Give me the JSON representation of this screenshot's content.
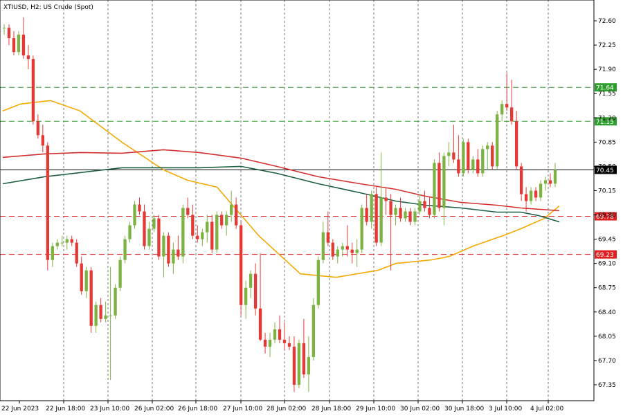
{
  "header": {
    "title": "XTIUSD, H2:  US Crude (Spot)"
  },
  "chart_data": {
    "type": "candlestick",
    "symbol": "XTIUSD",
    "timeframe": "H2",
    "instrument": "US Crude (Spot)",
    "ylim": [
      67.12,
      72.9
    ],
    "y_ticks": [
      72.6,
      72.25,
      71.9,
      71.55,
      71.2,
      70.85,
      70.5,
      70.15,
      69.8,
      69.45,
      69.1,
      68.75,
      68.4,
      68.05,
      67.7,
      67.35
    ],
    "y_tick_labels": [
      "72.60",
      "72.25",
      "71.90",
      "71.55",
      "71.20",
      "70.85",
      "70.50",
      "70.15",
      "69.80",
      "69.45",
      "69.10",
      "68.75",
      "68.40",
      "68.05",
      "67.70",
      "67.35"
    ],
    "x_labels": [
      "22 Jun 2023",
      "22 Jun 18:00",
      "23 Jun 10:00",
      "26 Jun 02:00",
      "26 Jun 18:00",
      "27 Jun 10:00",
      "28 Jun 02:00",
      "28 Jun 18:00",
      "29 Jun 10:00",
      "30 Jun 02:00",
      "30 Jun 18:00",
      "3 Jul 10:00",
      "4 Jul 02:00"
    ],
    "grid": "vertical-dashed",
    "current_price": {
      "value": 70.45,
      "label": "70.45",
      "color": "#000000"
    },
    "levels": [
      {
        "value": 71.64,
        "label": "71.64",
        "color": "#2e9e2e",
        "style": "dashed"
      },
      {
        "value": 71.15,
        "label": "71.15",
        "color": "#2e9e2e",
        "style": "dashed"
      },
      {
        "value": 69.78,
        "label": "69.78",
        "color": "#e02020",
        "style": "dashed"
      },
      {
        "value": 69.23,
        "label": "69.23",
        "color": "#e02020",
        "style": "dashed"
      }
    ],
    "candle_colors": {
      "up": "#7cb342",
      "down": "#e53935"
    },
    "candles": [
      [
        72.5,
        72.55,
        72.4,
        72.5
      ],
      [
        72.5,
        72.55,
        72.25,
        72.35
      ],
      [
        72.35,
        72.45,
        72.1,
        72.15
      ],
      [
        72.15,
        72.45,
        72.1,
        72.4
      ],
      [
        72.4,
        72.65,
        72.05,
        72.1
      ],
      [
        72.1,
        72.25,
        71.9,
        72.05
      ],
      [
        72.05,
        72.1,
        71.1,
        71.15
      ],
      [
        71.15,
        71.25,
        70.9,
        70.95
      ],
      [
        70.95,
        71.1,
        70.7,
        70.8
      ],
      [
        70.8,
        70.85,
        69.0,
        69.15
      ],
      [
        69.15,
        69.4,
        69.05,
        69.35
      ],
      [
        69.35,
        69.45,
        69.3,
        69.4
      ],
      [
        69.4,
        69.5,
        69.35,
        69.4
      ],
      [
        69.4,
        69.5,
        69.3,
        69.45
      ],
      [
        69.45,
        69.5,
        69.35,
        69.4
      ],
      [
        69.4,
        69.45,
        69.05,
        69.1
      ],
      [
        69.1,
        69.2,
        68.65,
        68.7
      ],
      [
        68.7,
        69.05,
        68.6,
        69.0
      ],
      [
        69.0,
        69.05,
        68.1,
        68.2
      ],
      [
        68.2,
        68.55,
        68.1,
        68.5
      ],
      [
        68.5,
        68.6,
        68.25,
        68.3
      ],
      [
        68.3,
        68.55,
        68.25,
        68.35
      ],
      [
        68.35,
        69.05,
        67.42,
        68.35
      ],
      [
        68.35,
        68.8,
        68.3,
        68.75
      ],
      [
        68.75,
        69.2,
        68.7,
        69.15
      ],
      [
        69.15,
        69.5,
        69.1,
        69.45
      ],
      [
        69.45,
        69.7,
        69.4,
        69.65
      ],
      [
        69.65,
        70.0,
        69.6,
        69.95
      ],
      [
        69.95,
        70.05,
        69.8,
        69.85
      ],
      [
        69.85,
        69.95,
        69.3,
        69.35
      ],
      [
        69.35,
        69.7,
        69.3,
        69.6
      ],
      [
        69.6,
        69.8,
        69.55,
        69.75
      ],
      [
        69.75,
        69.8,
        69.15,
        69.2
      ],
      [
        69.2,
        69.55,
        68.9,
        69.5
      ],
      [
        69.5,
        69.55,
        69.05,
        69.1
      ],
      [
        69.1,
        69.4,
        68.95,
        69.3
      ],
      [
        69.3,
        69.5,
        69.15,
        69.2
      ],
      [
        69.2,
        69.95,
        69.1,
        69.9
      ],
      [
        69.9,
        70.05,
        69.75,
        69.8
      ],
      [
        69.8,
        69.95,
        69.45,
        69.5
      ],
      [
        69.5,
        69.65,
        69.4,
        69.45
      ],
      [
        69.45,
        69.6,
        69.35,
        69.55
      ],
      [
        69.55,
        69.8,
        69.4,
        69.7
      ],
      [
        69.7,
        69.8,
        69.25,
        69.3
      ],
      [
        69.3,
        69.85,
        69.25,
        69.8
      ],
      [
        69.8,
        69.85,
        69.6,
        69.65
      ],
      [
        69.65,
        69.85,
        69.5,
        69.8
      ],
      [
        69.8,
        70.15,
        69.7,
        69.95
      ],
      [
        69.95,
        70.05,
        69.6,
        69.65
      ],
      [
        69.65,
        69.7,
        68.35,
        68.5
      ],
      [
        68.5,
        68.85,
        68.3,
        68.75
      ],
      [
        68.75,
        69.0,
        68.6,
        68.95
      ],
      [
        68.95,
        69.1,
        68.35,
        68.45
      ],
      [
        68.45,
        69.25,
        67.98,
        68.0
      ],
      [
        68.0,
        68.1,
        67.8,
        67.9
      ],
      [
        67.9,
        68.1,
        67.75,
        68.0
      ],
      [
        68.0,
        68.25,
        67.95,
        68.15
      ],
      [
        68.15,
        68.35,
        67.95,
        68.0
      ],
      [
        68.0,
        68.25,
        67.85,
        67.95
      ],
      [
        67.95,
        68.05,
        67.85,
        67.9
      ],
      [
        67.9,
        68.05,
        67.25,
        67.35
      ],
      [
        67.35,
        68.0,
        67.3,
        67.95
      ],
      [
        67.95,
        68.3,
        67.45,
        67.5
      ],
      [
        67.5,
        68.05,
        67.25,
        67.75
      ],
      [
        67.75,
        68.6,
        67.7,
        68.5
      ],
      [
        68.5,
        69.2,
        68.45,
        69.15
      ],
      [
        69.15,
        69.7,
        69.1,
        69.55
      ],
      [
        69.55,
        69.85,
        69.35,
        69.4
      ],
      [
        69.4,
        69.45,
        69.15,
        69.2
      ],
      [
        69.2,
        69.35,
        69.1,
        69.3
      ],
      [
        69.3,
        69.4,
        69.2,
        69.35
      ],
      [
        69.35,
        69.65,
        69.2,
        69.3
      ],
      [
        69.3,
        69.4,
        69.1,
        69.25
      ],
      [
        69.25,
        69.45,
        69.05,
        69.3
      ],
      [
        69.3,
        69.95,
        69.25,
        69.9
      ],
      [
        69.9,
        70.1,
        69.65,
        69.7
      ],
      [
        69.7,
        70.15,
        69.6,
        70.1
      ],
      [
        70.1,
        70.2,
        69.35,
        69.4
      ],
      [
        69.4,
        70.7,
        69.35,
        70.05
      ],
      [
        70.05,
        70.2,
        69.8,
        70.0
      ],
      [
        70.0,
        70.1,
        69.0,
        69.8
      ],
      [
        69.8,
        69.95,
        69.65,
        69.9
      ],
      [
        69.9,
        70.05,
        69.7,
        69.75
      ],
      [
        69.75,
        69.9,
        69.7,
        69.85
      ],
      [
        69.85,
        69.9,
        69.65,
        69.7
      ],
      [
        69.7,
        69.9,
        69.65,
        69.85
      ],
      [
        69.85,
        70.1,
        69.8,
        70.0
      ],
      [
        70.0,
        70.15,
        69.85,
        69.9
      ],
      [
        69.9,
        70.05,
        69.75,
        69.8
      ],
      [
        69.8,
        70.6,
        69.75,
        70.55
      ],
      [
        70.55,
        70.7,
        69.85,
        69.9
      ],
      [
        69.9,
        70.7,
        69.65,
        70.65
      ],
      [
        70.65,
        70.85,
        70.5,
        70.7
      ],
      [
        70.7,
        71.1,
        70.55,
        70.6
      ],
      [
        70.6,
        70.95,
        70.35,
        70.4
      ],
      [
        70.4,
        70.9,
        70.35,
        70.85
      ],
      [
        70.85,
        70.9,
        70.4,
        70.45
      ],
      [
        70.45,
        70.65,
        70.4,
        70.6
      ],
      [
        70.6,
        70.75,
        70.35,
        70.4
      ],
      [
        70.4,
        70.8,
        70.35,
        70.75
      ],
      [
        70.75,
        70.85,
        70.45,
        70.8
      ],
      [
        70.8,
        70.85,
        70.45,
        70.5
      ],
      [
        70.5,
        71.3,
        70.45,
        71.25
      ],
      [
        71.25,
        71.45,
        71.15,
        71.4
      ],
      [
        71.4,
        71.85,
        71.3,
        71.35
      ],
      [
        71.35,
        71.75,
        71.1,
        71.15
      ],
      [
        71.15,
        71.3,
        70.45,
        70.5
      ],
      [
        70.5,
        70.55,
        70.0,
        70.1
      ],
      [
        70.1,
        70.2,
        69.85,
        70.0
      ],
      [
        70.0,
        70.2,
        69.95,
        70.15
      ],
      [
        70.15,
        70.2,
        70.0,
        70.05
      ],
      [
        70.05,
        70.3,
        70.0,
        70.25
      ],
      [
        70.25,
        70.35,
        70.15,
        70.3
      ],
      [
        70.3,
        70.4,
        70.2,
        70.25
      ],
      [
        70.25,
        70.55,
        70.2,
        70.45
      ]
    ],
    "series": [
      {
        "name": "",
        "color": "#f5a800",
        "values": [
          [
            0,
            71.3
          ],
          [
            0.03,
            71.4
          ],
          [
            0.08,
            71.45
          ],
          [
            0.13,
            71.3
          ],
          [
            0.2,
            70.85
          ],
          [
            0.27,
            70.45
          ],
          [
            0.31,
            70.3
          ],
          [
            0.36,
            70.2
          ],
          [
            0.43,
            69.5
          ],
          [
            0.5,
            68.95
          ],
          [
            0.56,
            68.9
          ],
          [
            0.63,
            69.0
          ],
          [
            0.66,
            69.1
          ],
          [
            0.72,
            69.15
          ],
          [
            0.75,
            69.2
          ],
          [
            0.79,
            69.35
          ],
          [
            0.84,
            69.5
          ],
          [
            0.87,
            69.6
          ],
          [
            0.91,
            69.75
          ],
          [
            0.935,
            69.93
          ]
        ]
      },
      {
        "name": "",
        "color": "#d32f2f",
        "values": [
          [
            0,
            70.63
          ],
          [
            0.07,
            70.68
          ],
          [
            0.13,
            70.7
          ],
          [
            0.2,
            70.69
          ],
          [
            0.27,
            70.74
          ],
          [
            0.33,
            70.7
          ],
          [
            0.4,
            70.62
          ],
          [
            0.46,
            70.5
          ],
          [
            0.53,
            70.35
          ],
          [
            0.6,
            70.25
          ],
          [
            0.66,
            70.17
          ],
          [
            0.71,
            70.07
          ],
          [
            0.77,
            69.98
          ],
          [
            0.83,
            69.94
          ],
          [
            0.87,
            69.9
          ],
          [
            0.935,
            69.86
          ]
        ]
      },
      {
        "name": "",
        "color": "#1b5e40",
        "values": [
          [
            0,
            70.25
          ],
          [
            0.07,
            70.35
          ],
          [
            0.13,
            70.41
          ],
          [
            0.2,
            70.48
          ],
          [
            0.27,
            70.48
          ],
          [
            0.33,
            70.48
          ],
          [
            0.4,
            70.5
          ],
          [
            0.46,
            70.4
          ],
          [
            0.53,
            70.25
          ],
          [
            0.6,
            70.12
          ],
          [
            0.66,
            70.0
          ],
          [
            0.71,
            69.94
          ],
          [
            0.77,
            69.9
          ],
          [
            0.83,
            69.84
          ],
          [
            0.87,
            69.84
          ],
          [
            0.9,
            69.79
          ],
          [
            0.935,
            69.7
          ]
        ]
      }
    ]
  }
}
